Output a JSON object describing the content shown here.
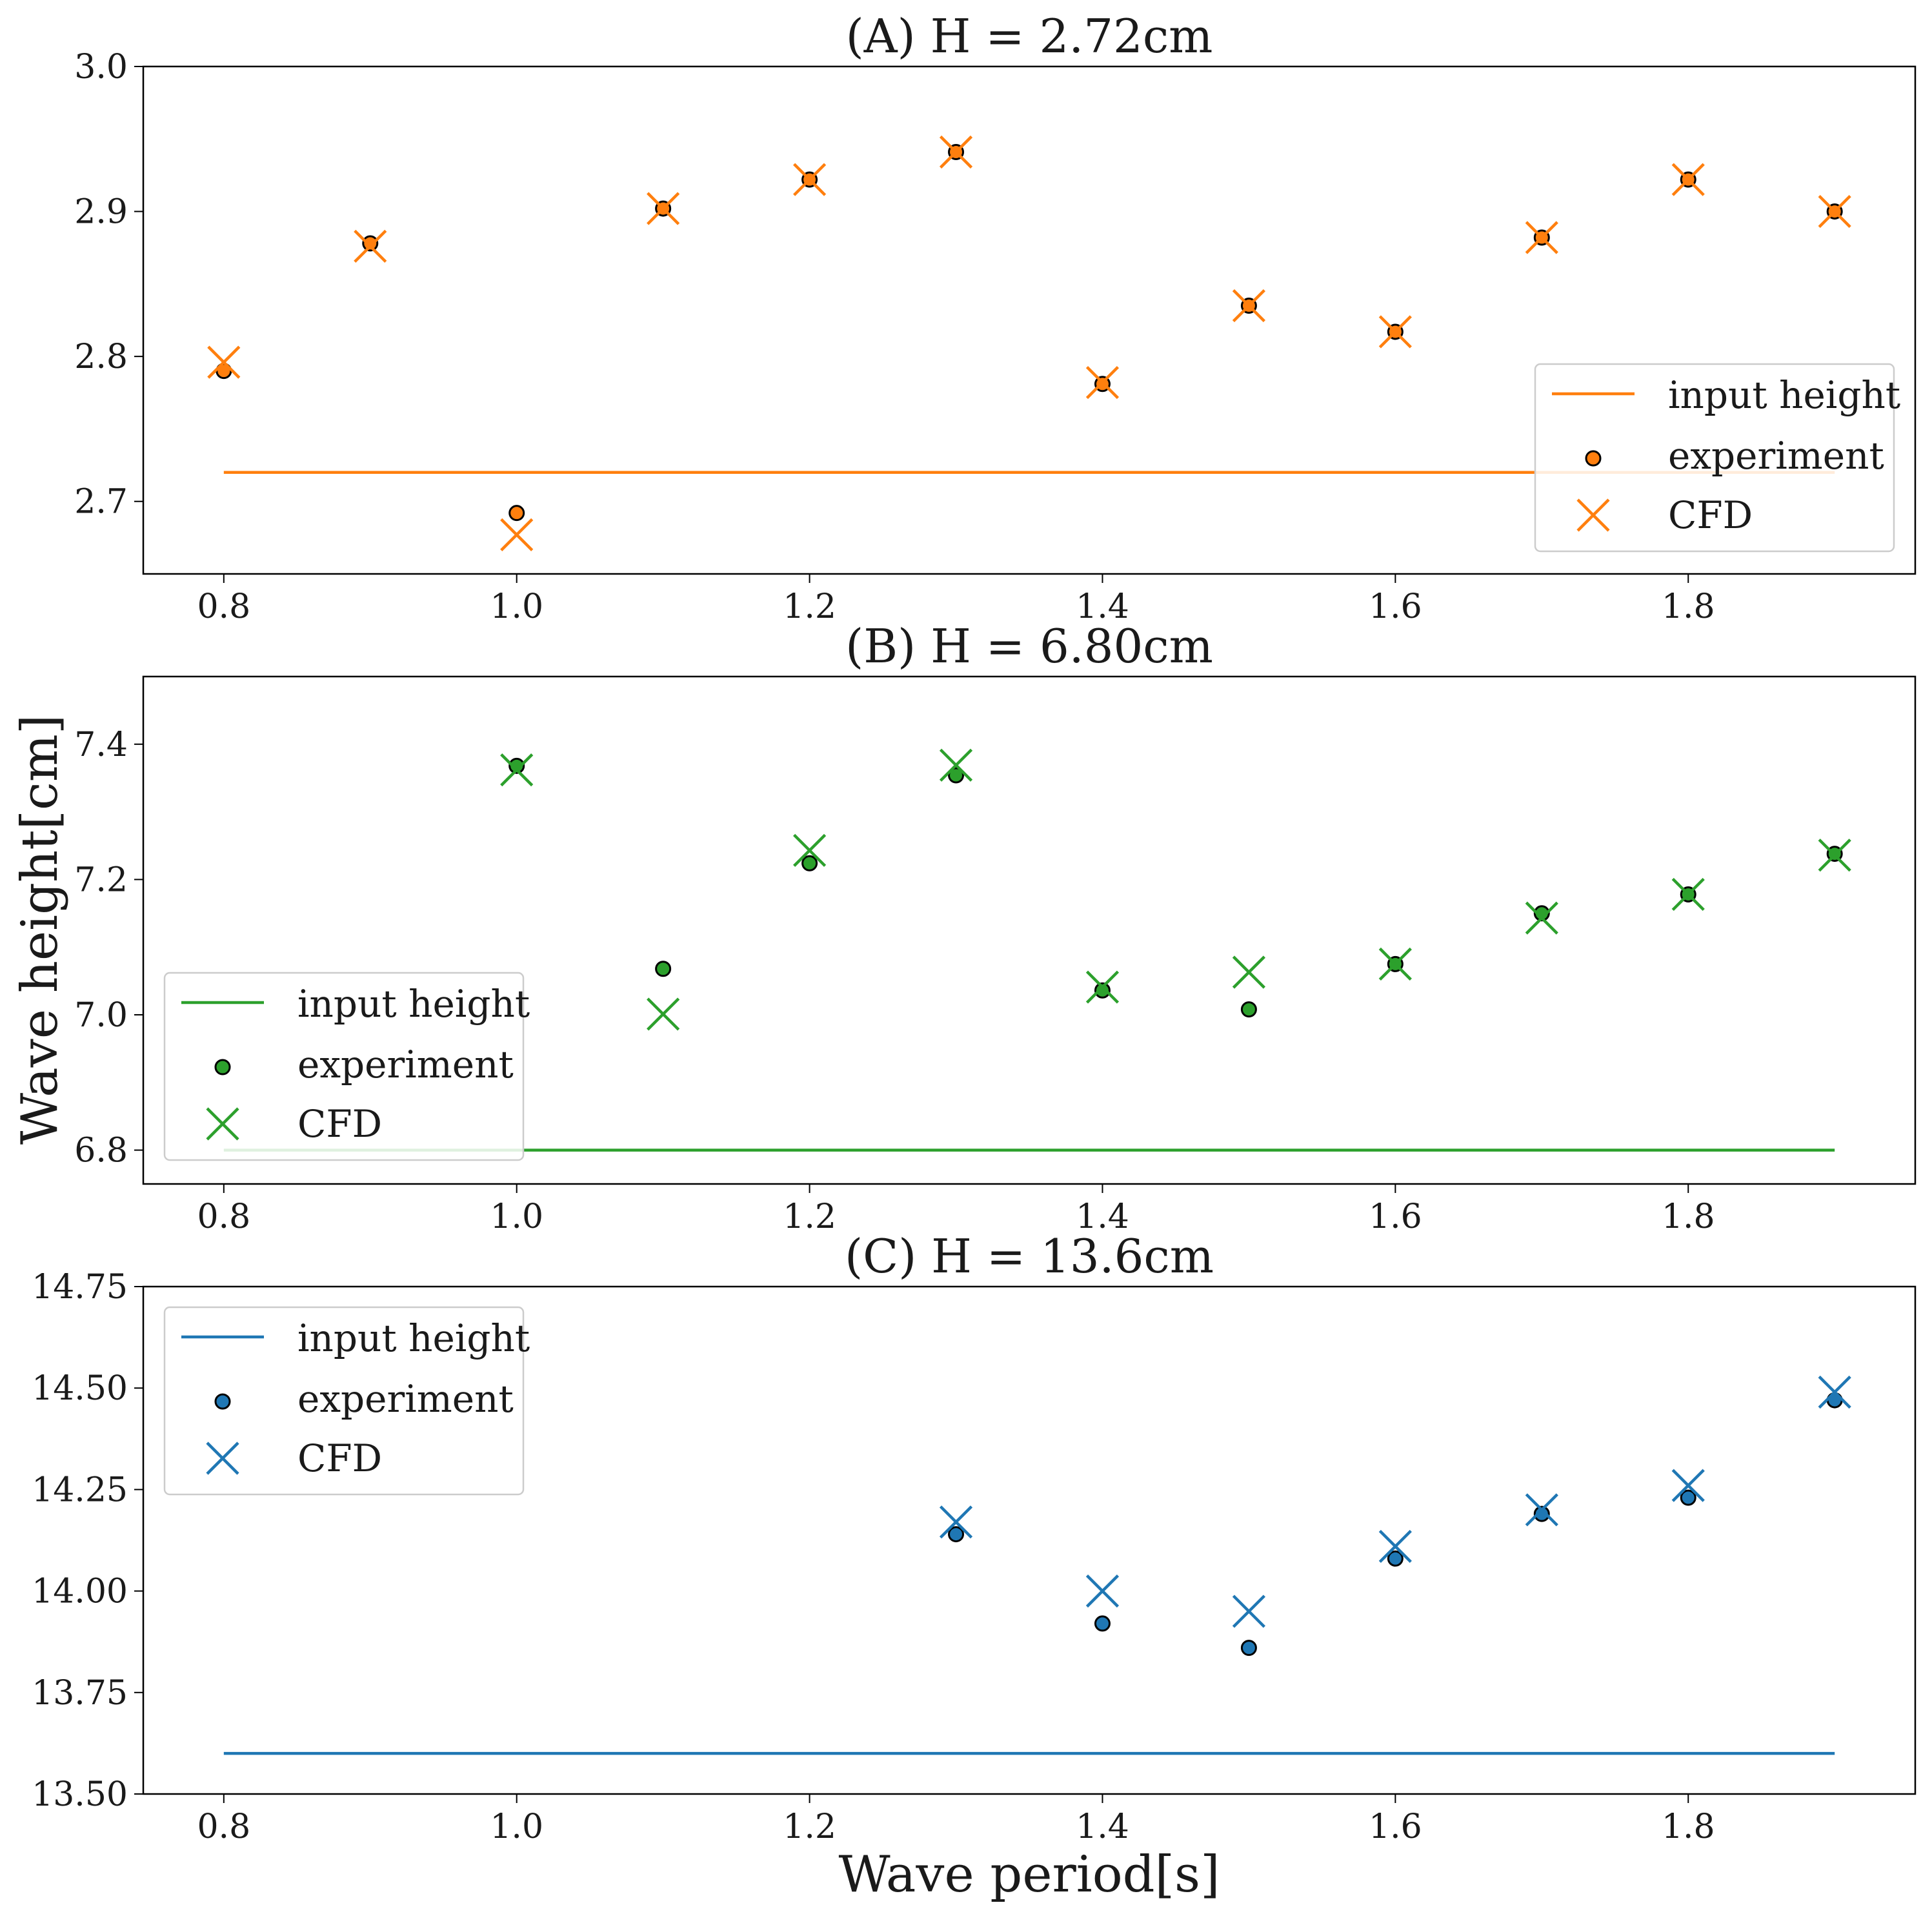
{
  "figure": {
    "ylabel": "Wave height[cm]",
    "xlabel": "Wave period[s]"
  },
  "colors": {
    "orange": "#ff7f0e",
    "green": "#2ca02c",
    "blue": "#1f77b4",
    "axis": "#000000",
    "legend_border": "#cccccc"
  },
  "chart_data": [
    {
      "type": "scatter",
      "title": "(A) H = 2.72cm",
      "color": "#ff7f0e",
      "xlim": [
        0.745,
        1.955
      ],
      "ylim": [
        2.65,
        3.0
      ],
      "xticks": [
        0.8,
        1.0,
        1.2,
        1.4,
        1.6,
        1.8
      ],
      "xtick_labels": [
        "0.8",
        "1.0",
        "1.2",
        "1.4",
        "1.6",
        "1.8"
      ],
      "yticks": [
        2.7,
        2.8,
        2.9,
        3.0
      ],
      "ytick_labels": [
        "2.7",
        "2.8",
        "2.9",
        "3.0"
      ],
      "input_height": {
        "value": 2.72,
        "x_range": [
          0.8,
          1.9
        ]
      },
      "legend": {
        "position": "lower-right",
        "entries": [
          "input height",
          "experiment",
          "CFD"
        ]
      },
      "series": [
        {
          "name": "experiment",
          "marker": "circle",
          "x": [
            0.8,
            0.9,
            1.0,
            1.1,
            1.2,
            1.3,
            1.4,
            1.5,
            1.6,
            1.7,
            1.8,
            1.9
          ],
          "y": [
            2.79,
            2.878,
            2.692,
            2.902,
            2.922,
            2.941,
            2.781,
            2.835,
            2.817,
            2.882,
            2.922,
            2.9
          ]
        },
        {
          "name": "CFD",
          "marker": "x",
          "x": [
            0.8,
            0.9,
            1.0,
            1.1,
            1.2,
            1.3,
            1.4,
            1.5,
            1.6,
            1.7,
            1.8,
            1.9
          ],
          "y": [
            2.796,
            2.876,
            2.677,
            2.902,
            2.922,
            2.941,
            2.782,
            2.835,
            2.817,
            2.882,
            2.922,
            2.9
          ]
        }
      ]
    },
    {
      "type": "scatter",
      "title": "(B) H = 6.80cm",
      "color": "#2ca02c",
      "xlim": [
        0.745,
        1.955
      ],
      "ylim": [
        6.75,
        7.5
      ],
      "xticks": [
        0.8,
        1.0,
        1.2,
        1.4,
        1.6,
        1.8
      ],
      "xtick_labels": [
        "0.8",
        "1.0",
        "1.2",
        "1.4",
        "1.6",
        "1.8"
      ],
      "yticks": [
        6.8,
        7.0,
        7.2,
        7.4
      ],
      "ytick_labels": [
        "6.8",
        "7.0",
        "7.2",
        "7.4"
      ],
      "input_height": {
        "value": 6.8,
        "x_range": [
          0.8,
          1.9
        ]
      },
      "legend": {
        "position": "lower-left",
        "entries": [
          "input height",
          "experiment",
          "CFD"
        ]
      },
      "series": [
        {
          "name": "experiment",
          "marker": "circle",
          "x": [
            1.0,
            1.1,
            1.2,
            1.3,
            1.4,
            1.5,
            1.6,
            1.7,
            1.8,
            1.9
          ],
          "y": [
            7.368,
            7.068,
            7.224,
            7.354,
            7.036,
            7.008,
            7.075,
            7.15,
            7.178,
            7.238
          ]
        },
        {
          "name": "CFD",
          "marker": "x",
          "x": [
            1.0,
            1.1,
            1.2,
            1.3,
            1.4,
            1.5,
            1.6,
            1.7,
            1.8,
            1.9
          ],
          "y": [
            7.362,
            7.001,
            7.243,
            7.369,
            7.041,
            7.063,
            7.075,
            7.143,
            7.178,
            7.236
          ]
        }
      ]
    },
    {
      "type": "scatter",
      "title": "(C) H = 13.6cm",
      "color": "#1f77b4",
      "xlim": [
        0.745,
        1.955
      ],
      "ylim": [
        13.5,
        14.75
      ],
      "xticks": [
        0.8,
        1.0,
        1.2,
        1.4,
        1.6,
        1.8
      ],
      "xtick_labels": [
        "0.8",
        "1.0",
        "1.2",
        "1.4",
        "1.6",
        "1.8"
      ],
      "yticks": [
        13.5,
        13.75,
        14.0,
        14.25,
        14.5,
        14.75
      ],
      "ytick_labels": [
        "13.50",
        "13.75",
        "14.00",
        "14.25",
        "14.50",
        "14.75"
      ],
      "input_height": {
        "value": 13.6,
        "x_range": [
          0.8,
          1.9
        ]
      },
      "legend": {
        "position": "upper-left",
        "entries": [
          "input height",
          "experiment",
          "CFD"
        ]
      },
      "series": [
        {
          "name": "experiment",
          "marker": "circle",
          "x": [
            1.3,
            1.4,
            1.5,
            1.6,
            1.7,
            1.8,
            1.9
          ],
          "y": [
            14.14,
            13.92,
            13.86,
            14.08,
            14.19,
            14.23,
            14.47
          ]
        },
        {
          "name": "CFD",
          "marker": "x",
          "x": [
            1.3,
            1.4,
            1.5,
            1.6,
            1.7,
            1.8,
            1.9
          ],
          "y": [
            14.17,
            14.0,
            13.95,
            14.11,
            14.2,
            14.26,
            14.49
          ]
        }
      ]
    }
  ]
}
